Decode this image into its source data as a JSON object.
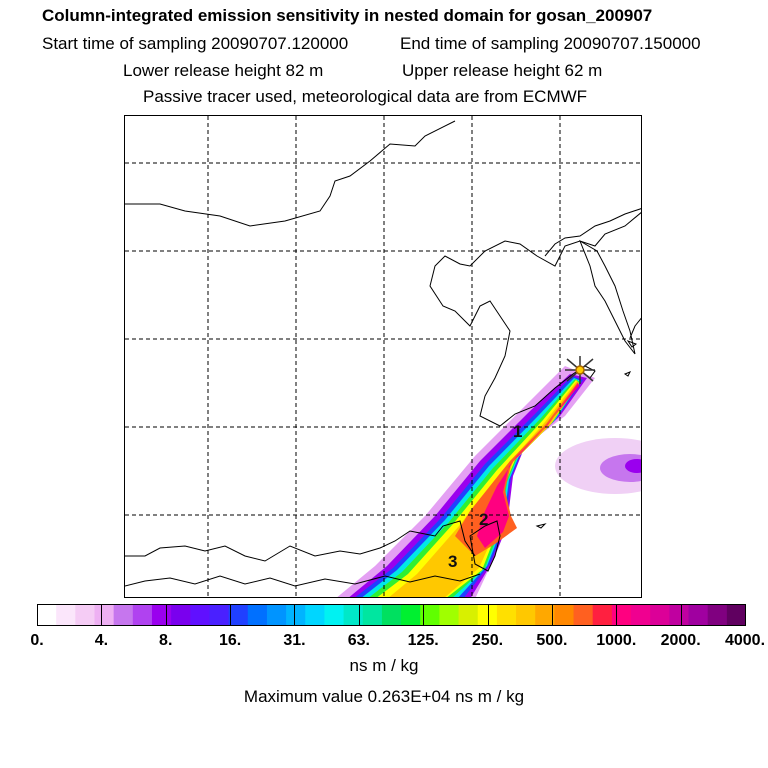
{
  "header": {
    "title": "Column-integrated emission sensitivity in nested domain for gosan_200907",
    "start_time": "Start time of sampling 20090707.120000",
    "end_time": "End time of sampling 20090707.150000",
    "lower_release": "Lower release height   82 m",
    "upper_release": "Upper release height   62 m",
    "tracer_note": "Passive tracer used, meteorological data are from ECMWF"
  },
  "map": {
    "region": "East Asia (China, Korea, Japan)",
    "receptor_marker": "receptor-star",
    "annotations": [
      "1",
      "2",
      "3"
    ]
  },
  "colorbar": {
    "colors": [
      "#ffffff",
      "#fbe6fb",
      "#f5ccf5",
      "#eeb0f3",
      "#c676ee",
      "#b042f0",
      "#9a00ee",
      "#7a00ee",
      "#6010ff",
      "#4a20ff",
      "#2040ff",
      "#0070ff",
      "#0094ff",
      "#00b4ff",
      "#00d6ff",
      "#00f2f2",
      "#00e8c8",
      "#00e6a0",
      "#00e060",
      "#00f030",
      "#60ff00",
      "#a0ff00",
      "#d8f000",
      "#ffff00",
      "#ffe000",
      "#ffc800",
      "#ffa800",
      "#ff8800",
      "#ff6020",
      "#ff2040",
      "#ff0080",
      "#f00090",
      "#dc0098",
      "#c000a0",
      "#a000a0",
      "#800080",
      "#600060"
    ],
    "tick_labels": [
      "0.",
      "4.",
      "8.",
      "16.",
      "31.",
      "63.",
      "125.",
      "250.",
      "500.",
      "1000.",
      "2000.",
      "4000."
    ],
    "units": "ns m / kg",
    "max_value_text": "Maximum value  0.263E+04 ns m / kg"
  }
}
